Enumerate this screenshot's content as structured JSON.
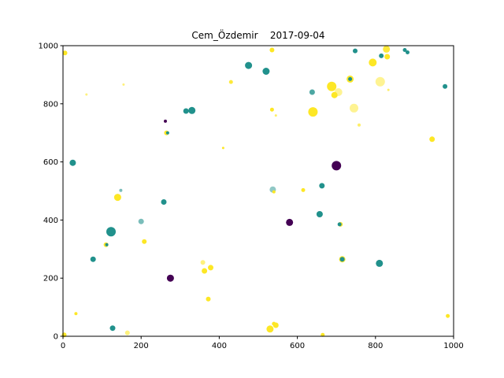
{
  "chart_data": {
    "type": "scatter",
    "title": "Cem_Özdemir    2017-09-04",
    "xlabel": "",
    "ylabel": "",
    "xlim": [
      0,
      1000
    ],
    "ylim": [
      0,
      1000
    ],
    "xticks": [
      "0",
      "200",
      "400",
      "600",
      "800",
      "1000"
    ],
    "yticks": [
      "0",
      "200",
      "400",
      "600",
      "800",
      "1000"
    ],
    "grid": false,
    "colors": {
      "purple": "#440154",
      "teal": "#21918c",
      "yellow": "#fde725"
    },
    "points": [
      {
        "x": 5,
        "y": 975,
        "s": 3,
        "c": "yellow",
        "a": 1
      },
      {
        "x": 60,
        "y": 832,
        "s": 1.5,
        "c": "yellow",
        "a": 0.6
      },
      {
        "x": 155,
        "y": 866,
        "s": 1.5,
        "c": "yellow",
        "a": 0.6
      },
      {
        "x": 25,
        "y": 597,
        "s": 4,
        "c": "teal",
        "a": 1
      },
      {
        "x": 262,
        "y": 740,
        "s": 2,
        "c": "purple",
        "a": 1
      },
      {
        "x": 265,
        "y": 700,
        "s": 3,
        "c": "yellow",
        "a": 1
      },
      {
        "x": 268,
        "y": 700,
        "s": 2,
        "c": "teal",
        "a": 1
      },
      {
        "x": 315,
        "y": 775,
        "s": 3.5,
        "c": "teal",
        "a": 1
      },
      {
        "x": 330,
        "y": 777,
        "s": 4.5,
        "c": "teal",
        "a": 1
      },
      {
        "x": 410,
        "y": 648,
        "s": 1.5,
        "c": "yellow",
        "a": 1
      },
      {
        "x": 430,
        "y": 875,
        "s": 2.5,
        "c": "yellow",
        "a": 0.9
      },
      {
        "x": 475,
        "y": 932,
        "s": 4.5,
        "c": "teal",
        "a": 1
      },
      {
        "x": 520,
        "y": 912,
        "s": 4.5,
        "c": "teal",
        "a": 1
      },
      {
        "x": 535,
        "y": 985,
        "s": 3,
        "c": "yellow",
        "a": 1
      },
      {
        "x": 535,
        "y": 780,
        "s": 2.5,
        "c": "yellow",
        "a": 1
      },
      {
        "x": 545,
        "y": 760,
        "s": 1.5,
        "c": "yellow",
        "a": 0.7
      },
      {
        "x": 640,
        "y": 772,
        "s": 6,
        "c": "yellow",
        "a": 1
      },
      {
        "x": 638,
        "y": 840,
        "s": 3.5,
        "c": "teal",
        "a": 0.8
      },
      {
        "x": 688,
        "y": 860,
        "s": 6,
        "c": "yellow",
        "a": 1
      },
      {
        "x": 695,
        "y": 830,
        "s": 4,
        "c": "yellow",
        "a": 1
      },
      {
        "x": 705,
        "y": 840,
        "s": 5,
        "c": "yellow",
        "a": 0.5
      },
      {
        "x": 735,
        "y": 885,
        "s": 4.5,
        "c": "yellow",
        "a": 1
      },
      {
        "x": 735,
        "y": 885,
        "s": 2.5,
        "c": "teal",
        "a": 1
      },
      {
        "x": 745,
        "y": 785,
        "s": 5.5,
        "c": "yellow",
        "a": 0.5
      },
      {
        "x": 748,
        "y": 982,
        "s": 3,
        "c": "teal",
        "a": 1
      },
      {
        "x": 758,
        "y": 727,
        "s": 2,
        "c": "yellow",
        "a": 0.7
      },
      {
        "x": 793,
        "y": 942,
        "s": 5,
        "c": "yellow",
        "a": 1
      },
      {
        "x": 815,
        "y": 965,
        "s": 3,
        "c": "teal",
        "a": 1
      },
      {
        "x": 812,
        "y": 876,
        "s": 6,
        "c": "yellow",
        "a": 0.5
      },
      {
        "x": 828,
        "y": 988,
        "s": 4.5,
        "c": "yellow",
        "a": 0.9
      },
      {
        "x": 830,
        "y": 962,
        "s": 3.5,
        "c": "yellow",
        "a": 1
      },
      {
        "x": 833,
        "y": 848,
        "s": 1.5,
        "c": "yellow",
        "a": 0.7
      },
      {
        "x": 875,
        "y": 985,
        "s": 2.5,
        "c": "teal",
        "a": 1
      },
      {
        "x": 882,
        "y": 977,
        "s": 2.5,
        "c": "teal",
        "a": 1
      },
      {
        "x": 978,
        "y": 860,
        "s": 3,
        "c": "teal",
        "a": 1
      },
      {
        "x": 945,
        "y": 678,
        "s": 3.5,
        "c": "yellow",
        "a": 1
      },
      {
        "x": 700,
        "y": 587,
        "s": 6,
        "c": "purple",
        "a": 1
      },
      {
        "x": 537,
        "y": 505,
        "s": 4,
        "c": "teal",
        "a": 0.5
      },
      {
        "x": 540,
        "y": 497,
        "s": 2,
        "c": "yellow",
        "a": 1
      },
      {
        "x": 615,
        "y": 503,
        "s": 2.5,
        "c": "yellow",
        "a": 1
      },
      {
        "x": 663,
        "y": 518,
        "s": 3.5,
        "c": "teal",
        "a": 1
      },
      {
        "x": 657,
        "y": 420,
        "s": 4,
        "c": "teal",
        "a": 1
      },
      {
        "x": 580,
        "y": 392,
        "s": 4.5,
        "c": "purple",
        "a": 1
      },
      {
        "x": 710,
        "y": 385,
        "s": 3,
        "c": "yellow",
        "a": 1
      },
      {
        "x": 708,
        "y": 385,
        "s": 2.5,
        "c": "teal",
        "a": 1
      },
      {
        "x": 148,
        "y": 502,
        "s": 2,
        "c": "teal",
        "a": 0.6
      },
      {
        "x": 140,
        "y": 478,
        "s": 4.5,
        "c": "yellow",
        "a": 1
      },
      {
        "x": 258,
        "y": 462,
        "s": 3.5,
        "c": "teal",
        "a": 1
      },
      {
        "x": 200,
        "y": 395,
        "s": 3.5,
        "c": "teal",
        "a": 0.6
      },
      {
        "x": 123,
        "y": 360,
        "s": 6,
        "c": "teal",
        "a": 1
      },
      {
        "x": 110,
        "y": 315,
        "s": 3,
        "c": "yellow",
        "a": 1
      },
      {
        "x": 112,
        "y": 315,
        "s": 2,
        "c": "teal",
        "a": 1
      },
      {
        "x": 208,
        "y": 326,
        "s": 3,
        "c": "yellow",
        "a": 1
      },
      {
        "x": 77,
        "y": 265,
        "s": 3.5,
        "c": "teal",
        "a": 1
      },
      {
        "x": 275,
        "y": 200,
        "s": 4.5,
        "c": "purple",
        "a": 1
      },
      {
        "x": 358,
        "y": 254,
        "s": 3,
        "c": "yellow",
        "a": 0.6
      },
      {
        "x": 362,
        "y": 225,
        "s": 3.5,
        "c": "yellow",
        "a": 1
      },
      {
        "x": 378,
        "y": 236,
        "s": 3.5,
        "c": "yellow",
        "a": 1
      },
      {
        "x": 372,
        "y": 128,
        "s": 3,
        "c": "yellow",
        "a": 1
      },
      {
        "x": 715,
        "y": 265,
        "s": 4,
        "c": "yellow",
        "a": 1
      },
      {
        "x": 715,
        "y": 265,
        "s": 3,
        "c": "teal",
        "a": 1
      },
      {
        "x": 810,
        "y": 251,
        "s": 4.5,
        "c": "teal",
        "a": 1
      },
      {
        "x": 33,
        "y": 78,
        "s": 2,
        "c": "yellow",
        "a": 1
      },
      {
        "x": 127,
        "y": 28,
        "s": 3.5,
        "c": "teal",
        "a": 1
      },
      {
        "x": 165,
        "y": 12,
        "s": 3,
        "c": "yellow",
        "a": 0.6
      },
      {
        "x": 3,
        "y": 5,
        "s": 3,
        "c": "yellow",
        "a": 1
      },
      {
        "x": 530,
        "y": 25,
        "s": 4.5,
        "c": "yellow",
        "a": 1
      },
      {
        "x": 545,
        "y": 38,
        "s": 3.5,
        "c": "yellow",
        "a": 1
      },
      {
        "x": 540,
        "y": 43,
        "s": 2.5,
        "c": "yellow",
        "a": 1
      },
      {
        "x": 665,
        "y": 5,
        "s": 2.5,
        "c": "yellow",
        "a": 1
      },
      {
        "x": 985,
        "y": 70,
        "s": 2.5,
        "c": "yellow",
        "a": 1
      }
    ]
  }
}
